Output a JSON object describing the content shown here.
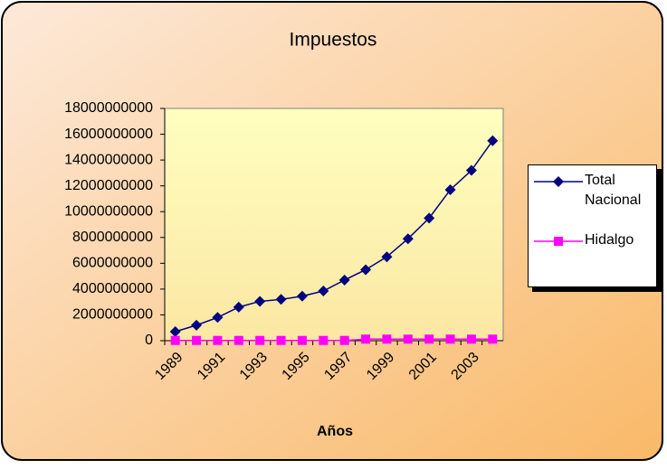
{
  "chart_data": {
    "type": "line",
    "title": "Impuestos",
    "x_label": "Años",
    "categories": [
      "1989",
      null,
      "1991",
      null,
      "1993",
      null,
      "1995",
      null,
      "1997",
      null,
      "1999",
      null,
      "2001",
      null,
      "2003",
      null
    ],
    "series": [
      {
        "name": "Total Nacional",
        "color": "#000080",
        "marker": "diamond",
        "values": [
          700000000,
          1200000000,
          1800000000,
          2600000000,
          3050000000,
          3200000000,
          3450000000,
          3850000000,
          4700000000,
          5500000000,
          6500000000,
          7900000000,
          9500000000,
          11700000000,
          13200000000,
          15500000000
        ]
      },
      {
        "name": "Hidalgo",
        "color": "#ff00ff",
        "marker": "square",
        "values": [
          20000000,
          20000000,
          20000000,
          20000000,
          20000000,
          20000000,
          20000000,
          20000000,
          20000000,
          120000000,
          120000000,
          120000000,
          120000000,
          120000000,
          120000000,
          120000000
        ]
      }
    ],
    "ylim": [
      0,
      18000000000
    ],
    "yticks": [
      0,
      2000000000,
      4000000000,
      6000000000,
      8000000000,
      10000000000,
      12000000000,
      14000000000,
      16000000000,
      18000000000
    ],
    "legend": "right"
  }
}
